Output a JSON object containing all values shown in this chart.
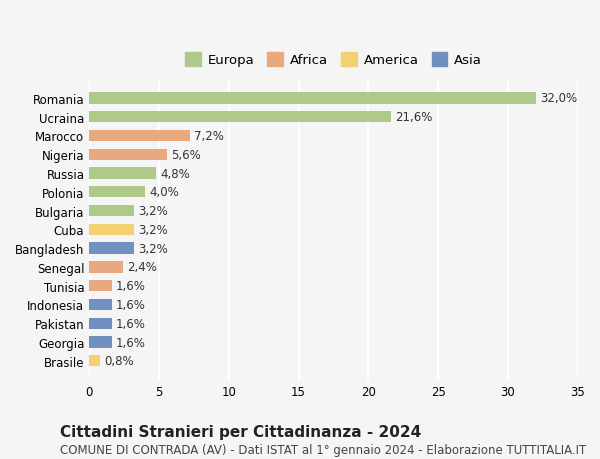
{
  "countries": [
    "Romania",
    "Ucraina",
    "Marocco",
    "Nigeria",
    "Russia",
    "Polonia",
    "Bulgaria",
    "Cuba",
    "Bangladesh",
    "Senegal",
    "Tunisia",
    "Indonesia",
    "Pakistan",
    "Georgia",
    "Brasile"
  ],
  "values": [
    32.0,
    21.6,
    7.2,
    5.6,
    4.8,
    4.0,
    3.2,
    3.2,
    3.2,
    2.4,
    1.6,
    1.6,
    1.6,
    1.6,
    0.8
  ],
  "continents": [
    "Europa",
    "Europa",
    "Africa",
    "Africa",
    "Europa",
    "Europa",
    "Europa",
    "America",
    "Asia",
    "Africa",
    "Africa",
    "Asia",
    "Asia",
    "Asia",
    "America"
  ],
  "continent_colors": {
    "Europa": "#aec98a",
    "Africa": "#e8a97e",
    "America": "#f5d070",
    "Asia": "#7090c0"
  },
  "legend_order": [
    "Europa",
    "Africa",
    "America",
    "Asia"
  ],
  "xlim": [
    0,
    35
  ],
  "xticks": [
    0,
    5,
    10,
    15,
    20,
    25,
    30,
    35
  ],
  "title": "Cittadini Stranieri per Cittadinanza - 2024",
  "subtitle": "COMUNE DI CONTRADA (AV) - Dati ISTAT al 1° gennaio 2024 - Elaborazione TUTTITALIA.IT",
  "bg_color": "#f5f5f5",
  "grid_color": "#ffffff",
  "bar_height": 0.6,
  "label_fontsize": 8.5,
  "value_fontsize": 8.5,
  "title_fontsize": 11,
  "subtitle_fontsize": 8.5,
  "legend_fontsize": 9.5
}
